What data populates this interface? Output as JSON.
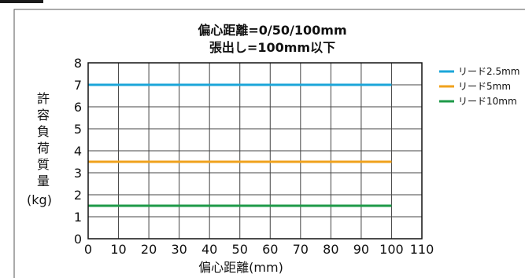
{
  "chart_data": {
    "type": "line",
    "title": [
      "偏心距離=0/50/100mm",
      "張出し=100mm以下"
    ],
    "xlabel": "偏心距離(mm)",
    "ylabel": [
      "許",
      "容",
      "負",
      "荷",
      "質",
      "量",
      "(kg)"
    ],
    "xlim": [
      0,
      110
    ],
    "ylim": [
      0,
      8
    ],
    "xticks": [
      0,
      10,
      20,
      30,
      40,
      50,
      60,
      70,
      80,
      90,
      100,
      110
    ],
    "yticks": [
      0,
      1,
      2,
      3,
      4,
      5,
      6,
      7,
      8
    ],
    "grid": true,
    "legend_position": "right",
    "series": [
      {
        "name": "リード2.5mm",
        "color": "#1ba6d9",
        "x": [
          0,
          100
        ],
        "y": [
          7,
          7
        ]
      },
      {
        "name": "リード5mm",
        "color": "#f0a21c",
        "x": [
          0,
          100
        ],
        "y": [
          3.5,
          3.5
        ]
      },
      {
        "name": "リード10mm",
        "color": "#1e9a48",
        "x": [
          0,
          100
        ],
        "y": [
          1.5,
          1.5
        ]
      }
    ]
  }
}
